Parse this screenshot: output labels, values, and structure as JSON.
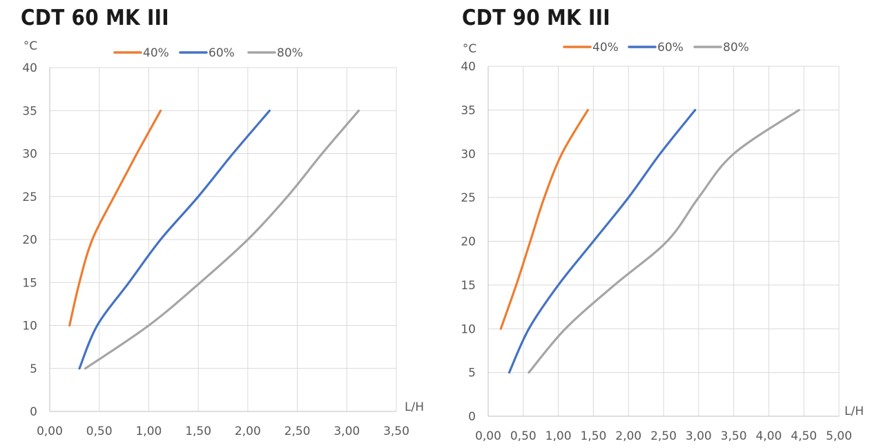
{
  "chart_data": [
    {
      "type": "line",
      "title": "CDT 60 MK III",
      "ylabel": "°C",
      "xlabel": "L/H",
      "xlim": [
        0,
        3.5
      ],
      "ylim": [
        0,
        40
      ],
      "x_ticks": [
        "0,00",
        "0,50",
        "1,00",
        "1,50",
        "2,00",
        "2,50",
        "3,00",
        "3,50"
      ],
      "x_tick_values": [
        0,
        0.5,
        1,
        1.5,
        2,
        2.5,
        3,
        3.5
      ],
      "y_ticks": [
        "0",
        "5",
        "10",
        "15",
        "20",
        "25",
        "30",
        "35",
        "40"
      ],
      "y_tick_values": [
        0,
        5,
        10,
        15,
        20,
        25,
        30,
        35,
        40
      ],
      "grid": true,
      "legend_position": "top",
      "series": [
        {
          "name": "40%",
          "color": "#ED7D31",
          "points": [
            [
              0.2,
              10
            ],
            [
              0.3,
              15
            ],
            [
              0.43,
              20
            ],
            [
              0.65,
              25
            ],
            [
              0.88,
              30
            ],
            [
              1.12,
              35
            ]
          ]
        },
        {
          "name": "60%",
          "color": "#4472C4",
          "points": [
            [
              0.3,
              5
            ],
            [
              0.48,
              10
            ],
            [
              0.8,
              15
            ],
            [
              1.12,
              20
            ],
            [
              1.5,
              25
            ],
            [
              1.85,
              30
            ],
            [
              2.22,
              35
            ]
          ]
        },
        {
          "name": "80%",
          "color": "#A5A5A5",
          "points": [
            [
              0.36,
              5
            ],
            [
              1.0,
              10
            ],
            [
              1.52,
              15
            ],
            [
              2.0,
              20
            ],
            [
              2.4,
              25
            ],
            [
              2.75,
              30
            ],
            [
              3.12,
              35
            ]
          ]
        }
      ]
    },
    {
      "type": "line",
      "title": "CDT 90 MK III",
      "ylabel": "°C",
      "xlabel": "L/H",
      "xlim": [
        0,
        5
      ],
      "ylim": [
        0,
        40
      ],
      "x_ticks": [
        "0,00",
        "0,50",
        "1,00",
        "1,50",
        "2,00",
        "2,50",
        "3,00",
        "3,50",
        "4,00",
        "4,50",
        "5,00"
      ],
      "x_tick_values": [
        0,
        0.5,
        1,
        1.5,
        2,
        2.5,
        3,
        3.5,
        4,
        4.5,
        5
      ],
      "y_ticks": [
        "0",
        "5",
        "10",
        "15",
        "20",
        "25",
        "30",
        "35",
        "40"
      ],
      "y_tick_values": [
        0,
        5,
        10,
        15,
        20,
        25,
        30,
        35,
        40
      ],
      "grid": true,
      "legend_position": "top",
      "series": [
        {
          "name": "40%",
          "color": "#ED7D31",
          "points": [
            [
              0.18,
              10
            ],
            [
              0.4,
              15
            ],
            [
              0.6,
              20
            ],
            [
              0.8,
              25
            ],
            [
              1.05,
              30
            ],
            [
              1.42,
              35
            ]
          ]
        },
        {
          "name": "60%",
          "color": "#4472C4",
          "points": [
            [
              0.3,
              5
            ],
            [
              0.58,
              10
            ],
            [
              1.0,
              15
            ],
            [
              1.5,
              20
            ],
            [
              2.0,
              25
            ],
            [
              2.45,
              30
            ],
            [
              2.95,
              35
            ]
          ]
        },
        {
          "name": "80%",
          "color": "#A5A5A5",
          "points": [
            [
              0.58,
              5
            ],
            [
              1.1,
              10
            ],
            [
              1.8,
              15
            ],
            [
              2.55,
              20
            ],
            [
              3.0,
              25
            ],
            [
              3.5,
              30
            ],
            [
              4.43,
              35
            ]
          ]
        }
      ]
    }
  ]
}
